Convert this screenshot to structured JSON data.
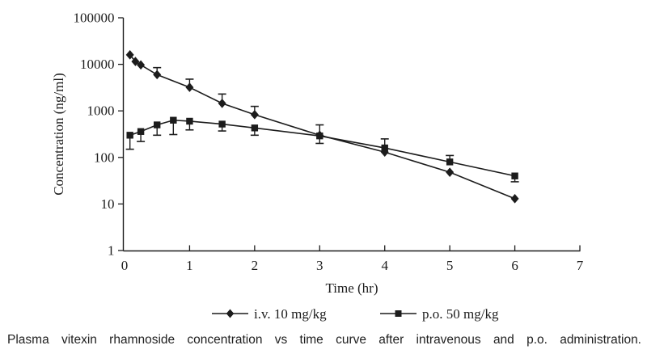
{
  "figure": {
    "caption": "Plasma vitexin rhamnoside concentration vs time curve after intravenous and p.o. administration."
  },
  "chart_data": {
    "type": "line",
    "title": "",
    "xlabel": "Time (hr)",
    "ylabel": "Concentration (ng/ml)",
    "x_axis": {
      "min": 0,
      "max": 7,
      "tick_labels": [
        "0",
        "1",
        "2",
        "3",
        "4",
        "5",
        "6",
        "7"
      ]
    },
    "y_axis": {
      "scale": "log",
      "min": 1,
      "max": 100000,
      "tick_values": [
        100000,
        10000,
        1000,
        100,
        10,
        1
      ],
      "tick_labels": [
        "100000",
        "10000",
        "1000",
        "100",
        "10",
        "1"
      ]
    },
    "grid": "off",
    "legend_position": "bottom-center",
    "series": [
      {
        "name": "i.v. 10 mg/kg",
        "marker": "diamond",
        "points": [
          {
            "t": 0.083,
            "v": 16000
          },
          {
            "t": 0.167,
            "v": 11500
          },
          {
            "t": 0.25,
            "v": 9700
          },
          {
            "t": 0.5,
            "v": 6000,
            "hi": 8500
          },
          {
            "t": 1,
            "v": 3200,
            "hi": 4800
          },
          {
            "t": 1.5,
            "v": 1450,
            "hi": 2300
          },
          {
            "t": 2,
            "v": 830,
            "hi": 1250
          },
          {
            "t": 3,
            "v": 300,
            "hi": 500,
            "lo": 200
          },
          {
            "t": 4,
            "v": 130
          },
          {
            "t": 5,
            "v": 48
          },
          {
            "t": 6,
            "v": 13
          }
        ]
      },
      {
        "name": "p.o. 50 mg/kg",
        "marker": "square",
        "points": [
          {
            "t": 0.083,
            "v": 300,
            "lo": 150
          },
          {
            "t": 0.25,
            "v": 360,
            "lo": 220
          },
          {
            "t": 0.5,
            "v": 500,
            "lo": 300
          },
          {
            "t": 0.75,
            "v": 630,
            "lo": 310
          },
          {
            "t": 1,
            "v": 600,
            "lo": 390
          },
          {
            "t": 1.5,
            "v": 520,
            "lo": 370
          },
          {
            "t": 2,
            "v": 430,
            "lo": 300
          },
          {
            "t": 3,
            "v": 290
          },
          {
            "t": 4,
            "v": 160,
            "hi": 250
          },
          {
            "t": 5,
            "v": 80,
            "hi": 110
          },
          {
            "t": 6,
            "v": 40,
            "lo": 30
          }
        ]
      }
    ],
    "colors": {
      "foreground": "#1c1c1c",
      "background": "#ffffff"
    }
  }
}
